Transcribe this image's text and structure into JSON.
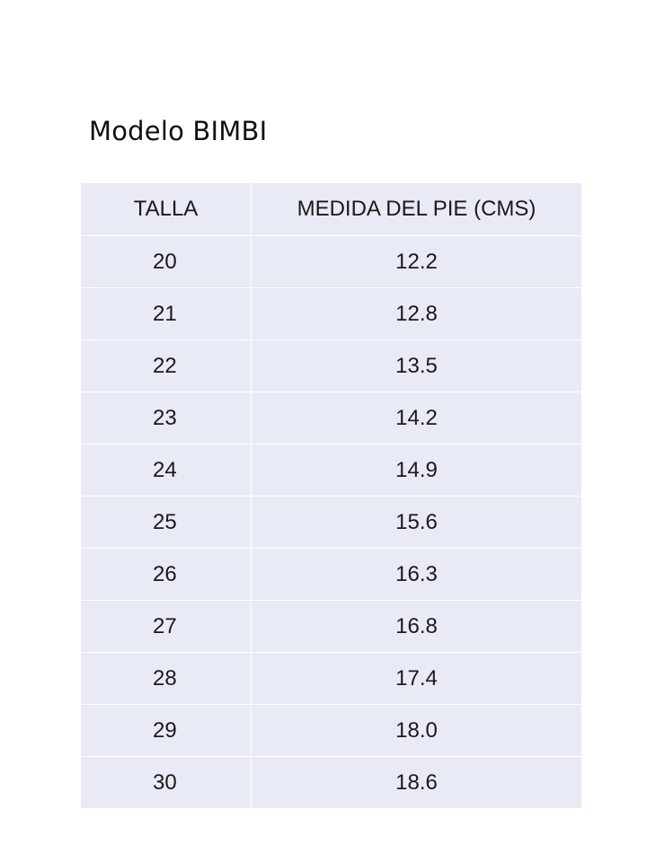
{
  "title": "Modelo BIMBI",
  "table": {
    "headers": [
      "TALLA",
      "MEDIDA DEL PIE (CMS)"
    ],
    "rows": [
      [
        "20",
        "12.2"
      ],
      [
        "21",
        "12.8"
      ],
      [
        "22",
        "13.5"
      ],
      [
        "23",
        "14.2"
      ],
      [
        "24",
        "14.9"
      ],
      [
        "25",
        "15.6"
      ],
      [
        "26",
        "16.3"
      ],
      [
        "27",
        "16.8"
      ],
      [
        "28",
        "17.4"
      ],
      [
        "29",
        "18.0"
      ],
      [
        "30",
        "18.6"
      ]
    ]
  },
  "colors": {
    "table_background": "#e8ebf5",
    "grid_lines": "#ffffff",
    "text": "#1a1a1a"
  }
}
